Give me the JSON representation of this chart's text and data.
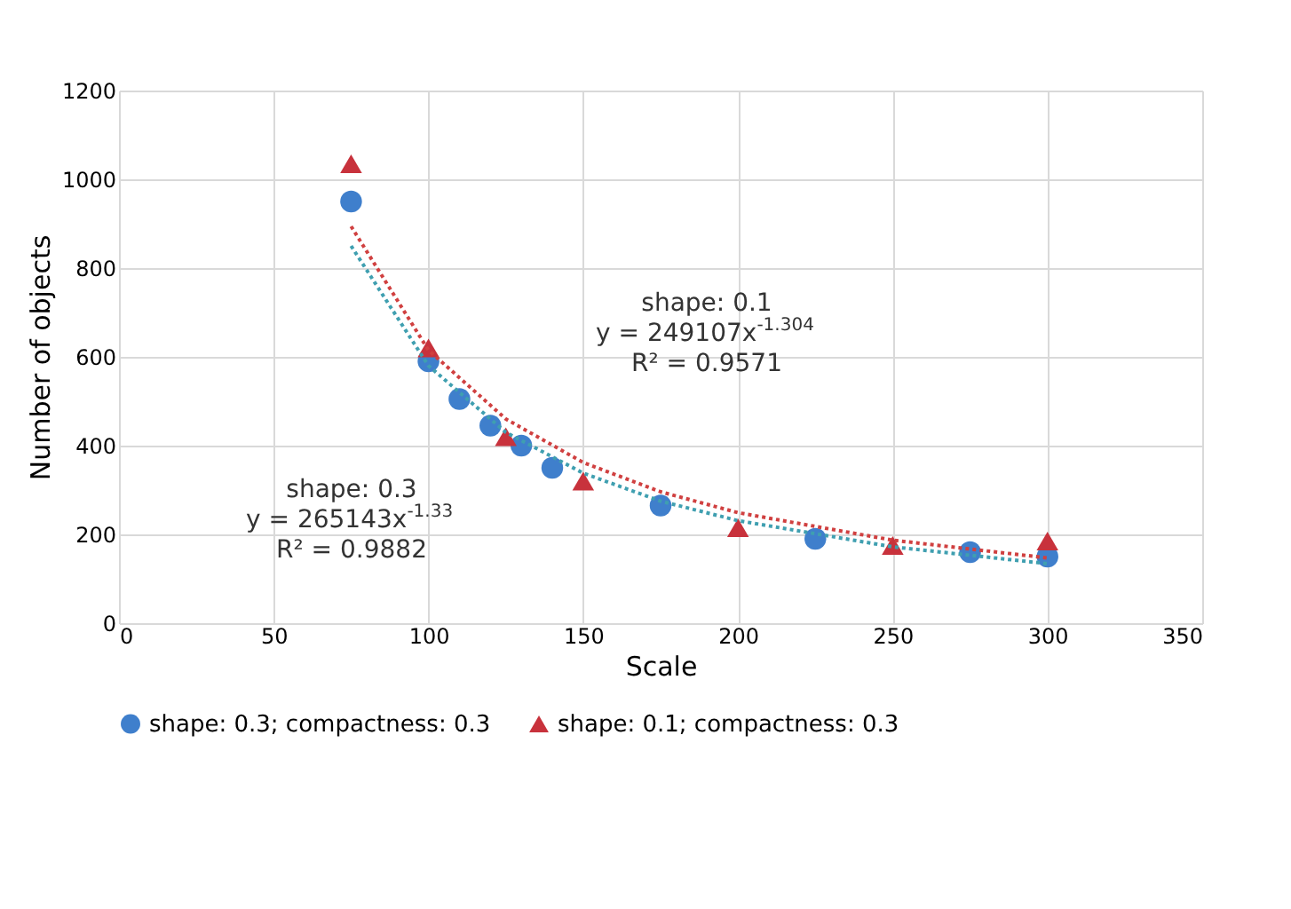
{
  "chart_data": {
    "type": "scatter",
    "xlabel": "Scale",
    "ylabel": "Number of objects",
    "xlim": [
      0,
      350
    ],
    "xticks": [
      0,
      50,
      100,
      150,
      200,
      250,
      300,
      350
    ],
    "ylim": [
      0,
      1200
    ],
    "yticks": [
      0,
      200,
      400,
      600,
      800,
      1000,
      1200
    ],
    "grid": true,
    "legend": "bottom",
    "series": [
      {
        "name": "shape: 0.3; compactness: 0.3",
        "color": "#3f7fcc",
        "marker": "circle",
        "x": [
          75,
          100,
          110,
          120,
          130,
          140,
          175,
          225,
          275,
          300
        ],
        "values": [
          950,
          590,
          505,
          445,
          400,
          350,
          265,
          190,
          160,
          150
        ]
      },
      {
        "name": "shape: 0.1; compactness: 0.3",
        "color": "#c8323c",
        "marker": "triangle",
        "x": [
          75,
          100,
          125,
          150,
          200,
          250,
          300
        ],
        "values": [
          1035,
          620,
          420,
          320,
          215,
          175,
          185
        ]
      },
      {
        "type": "line",
        "color": "#3f9fb0",
        "line_style": "dotted",
        "marker": "none",
        "x": [
          75,
          100,
          125,
          150,
          175,
          200,
          250,
          300
        ],
        "values": [
          850,
          580,
          430,
          338,
          275,
          231,
          172,
          134
        ]
      },
      {
        "type": "line",
        "color": "#d04040",
        "line_style": "dotted",
        "marker": "none",
        "x": [
          75,
          100,
          125,
          150,
          175,
          200,
          250,
          300
        ],
        "values": [
          894,
          615,
          460,
          362,
          296,
          249,
          187,
          147
        ]
      }
    ],
    "annotations": [
      "shape: 0.3\ny = 265143x$^{-1.33}$\nR² = 0.9882",
      "shape: 0.1\ny = 249107x$^{-1.304}$\nR² = 0.9571"
    ]
  }
}
